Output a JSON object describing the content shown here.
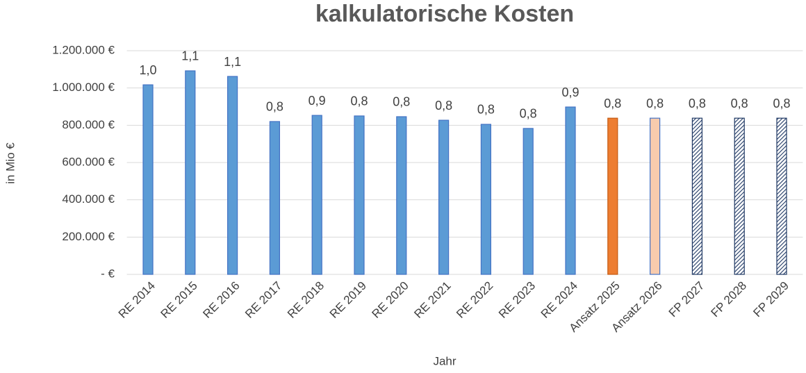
{
  "chart_data": {
    "type": "bar",
    "title": "kalkulatorische Kosten",
    "x_label": "Jahr",
    "y_label": "in Mio €",
    "categories": [
      "RE 2014",
      "RE 2015",
      "RE 2016",
      "RE 2017",
      "RE 2018",
      "RE 2019",
      "RE 2020",
      "RE 2021",
      "RE 2022",
      "RE 2023",
      "RE 2024",
      "Ansatz 2025",
      "Ansatz 2026",
      "FP 2027",
      "FP 2028",
      "FP 2029"
    ],
    "values": [
      1017000,
      1092000,
      1062000,
      820000,
      853000,
      850000,
      846000,
      827000,
      805000,
      783000,
      898000,
      838000,
      838000,
      838000,
      838000,
      838000
    ],
    "value_labels": [
      "1,0",
      "1,1",
      "1,1",
      "0,8",
      "0,9",
      "0,8",
      "0,8",
      "0,8",
      "0,8",
      "0,8",
      "0,9",
      "0,8",
      "0,8",
      "0,8",
      "0,8",
      "0,8"
    ],
    "colors": [
      "#5b9bd5",
      "#5b9bd5",
      "#5b9bd5",
      "#5b9bd5",
      "#5b9bd5",
      "#5b9bd5",
      "#5b9bd5",
      "#5b9bd5",
      "#5b9bd5",
      "#5b9bd5",
      "#5b9bd5",
      "#ed7d31",
      "#f8cbad",
      "#1f3864",
      "#1f3864",
      "#1f3864"
    ],
    "hatched": [
      false,
      false,
      false,
      false,
      false,
      false,
      false,
      false,
      false,
      false,
      false,
      false,
      false,
      true,
      true,
      true
    ],
    "ylim": [
      0,
      1200000
    ],
    "yticks": [
      {
        "value": 0,
        "label": "- €"
      },
      {
        "value": 200000,
        "label": "200.000 €"
      },
      {
        "value": 400000,
        "label": "400.000 €"
      },
      {
        "value": 600000,
        "label": "600.000 €"
      },
      {
        "value": 800000,
        "label": "800.000 €"
      },
      {
        "value": 1000000,
        "label": "1.000.000 €"
      },
      {
        "value": 1200000,
        "label": "1.200.000 €"
      }
    ],
    "grid": true
  }
}
